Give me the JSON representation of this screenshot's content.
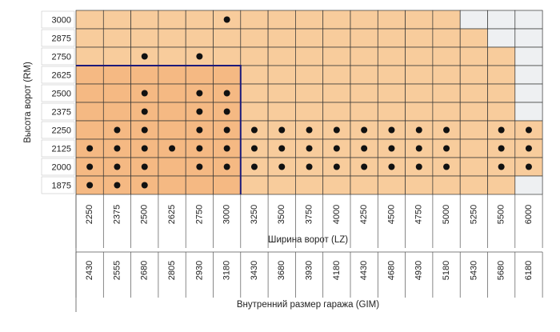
{
  "axis_y_title": "Высота ворот (RM)",
  "axis_width_title": "Ширина ворот (LZ)",
  "axis_gim_title": "Внутренний размер гаража (GIM)",
  "widths": [
    "2250",
    "2375",
    "2500",
    "2625",
    "2750",
    "3000",
    "3250",
    "3500",
    "3750",
    "4000",
    "4250",
    "4500",
    "4750",
    "5000",
    "5250",
    "5500",
    "6000"
  ],
  "gim": [
    "2430",
    "2555",
    "2680",
    "2805",
    "2930",
    "3180",
    "3430",
    "3680",
    "3930",
    "4180",
    "4430",
    "4680",
    "4930",
    "5180",
    "5430",
    "5680",
    "6180"
  ],
  "standard": {
    "max_width": 3000,
    "max_height": 2625
  },
  "rows": [
    {
      "height": "3000",
      "max_width": 5000,
      "dots": [
        3000
      ]
    },
    {
      "height": "2875",
      "max_width": 5250,
      "dots": []
    },
    {
      "height": "2750",
      "max_width": 5500,
      "dots": [
        2500,
        2750
      ]
    },
    {
      "height": "2625",
      "max_width": 5500,
      "dots": []
    },
    {
      "height": "2500",
      "max_width": 5500,
      "dots": [
        2500,
        2750,
        3000
      ]
    },
    {
      "height": "2375",
      "max_width": 5500,
      "dots": [
        2500,
        2750,
        3000
      ]
    },
    {
      "height": "2250",
      "max_width": 6000,
      "dots": [
        2375,
        2500,
        2750,
        3000,
        3250,
        3500,
        3750,
        4000,
        4250,
        4500,
        4750,
        5000,
        5500,
        6000
      ]
    },
    {
      "height": "2125",
      "max_width": 6000,
      "dots": [
        2250,
        2375,
        2500,
        2625,
        2750,
        3000,
        3250,
        3500,
        3750,
        4000,
        4250,
        4500,
        4750,
        5000,
        5500,
        6000
      ]
    },
    {
      "height": "2000",
      "max_width": 6000,
      "dots": [
        2250,
        2375,
        2500,
        2750,
        3000,
        3250,
        3500,
        3750,
        4000,
        4250,
        4500,
        4750,
        5000,
        5500,
        6000
      ]
    },
    {
      "height": "1875",
      "max_width": 5500,
      "dots": [
        2250,
        2375,
        2500
      ]
    }
  ]
}
